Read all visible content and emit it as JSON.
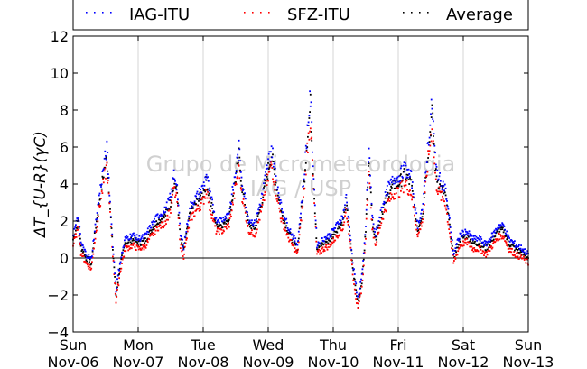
{
  "chart_data": {
    "type": "scatter",
    "ylabel": "ΔT_{U-R}(γC)",
    "ylim": [
      -4,
      12
    ],
    "yticks": [
      -4,
      -2,
      0,
      2,
      4,
      6,
      8,
      10,
      12
    ],
    "xlim": [
      0,
      7
    ],
    "xticks": [
      {
        "x": 0,
        "day": "Sun",
        "date": "Nov-06"
      },
      {
        "x": 1,
        "day": "Mon",
        "date": "Nov-07"
      },
      {
        "x": 2,
        "day": "Tue",
        "date": "Nov-08"
      },
      {
        "x": 3,
        "day": "Wed",
        "date": "Nov-09"
      },
      {
        "x": 4,
        "day": "Thu",
        "date": "Nov-10"
      },
      {
        "x": 5,
        "day": "Fri",
        "date": "Nov-11"
      },
      {
        "x": 6,
        "day": "Sat",
        "date": "Nov-12"
      },
      {
        "x": 7,
        "day": "Sun",
        "date": "Nov-13"
      }
    ],
    "watermark": [
      "Grupo de Micrometeorologia",
      "IAG / USP"
    ],
    "grid": "vertical",
    "legend_position": "top",
    "zero_line": true,
    "series": [
      {
        "name": "IAG-ITU",
        "color": "#0000ff",
        "offset": 0.35
      },
      {
        "name": "SFZ-ITU",
        "color": "#ff0000",
        "offset": -0.45
      },
      {
        "name": "Average",
        "color": "#000000",
        "offset": 0.0
      }
    ],
    "average_profile": [
      [
        0.0,
        1.0
      ],
      [
        0.08,
        2.0
      ],
      [
        0.12,
        0.6
      ],
      [
        0.2,
        0.0
      ],
      [
        0.28,
        -0.3
      ],
      [
        0.33,
        1.2
      ],
      [
        0.4,
        3.0
      ],
      [
        0.48,
        4.8
      ],
      [
        0.52,
        5.5
      ],
      [
        0.6,
        1.0
      ],
      [
        0.66,
        -2.0
      ],
      [
        0.72,
        -0.5
      ],
      [
        0.8,
        0.8
      ],
      [
        0.92,
        1.0
      ],
      [
        1.0,
        0.8
      ],
      [
        1.1,
        0.9
      ],
      [
        1.2,
        1.5
      ],
      [
        1.3,
        2.0
      ],
      [
        1.4,
        2.2
      ],
      [
        1.5,
        3.0
      ],
      [
        1.55,
        4.2
      ],
      [
        1.6,
        3.5
      ],
      [
        1.65,
        1.0
      ],
      [
        1.7,
        0.4
      ],
      [
        1.8,
        2.5
      ],
      [
        1.9,
        3.0
      ],
      [
        2.0,
        3.5
      ],
      [
        2.05,
        4.2
      ],
      [
        2.1,
        3.2
      ],
      [
        2.15,
        2.5
      ],
      [
        2.2,
        1.8
      ],
      [
        2.3,
        1.8
      ],
      [
        2.4,
        2.2
      ],
      [
        2.5,
        4.3
      ],
      [
        2.55,
        5.5
      ],
      [
        2.6,
        3.8
      ],
      [
        2.7,
        1.8
      ],
      [
        2.8,
        1.6
      ],
      [
        2.9,
        3.0
      ],
      [
        3.0,
        4.8
      ],
      [
        3.05,
        5.6
      ],
      [
        3.1,
        4.5
      ],
      [
        3.2,
        2.5
      ],
      [
        3.3,
        1.5
      ],
      [
        3.4,
        0.8
      ],
      [
        3.45,
        0.5
      ],
      [
        3.55,
        4.0
      ],
      [
        3.6,
        6.5
      ],
      [
        3.65,
        8.2
      ],
      [
        3.7,
        4.0
      ],
      [
        3.75,
        0.5
      ],
      [
        3.85,
        0.8
      ],
      [
        3.95,
        1.0
      ],
      [
        4.05,
        1.5
      ],
      [
        4.15,
        2.0
      ],
      [
        4.2,
        3.0
      ],
      [
        4.25,
        1.5
      ],
      [
        4.3,
        -0.5
      ],
      [
        4.38,
        -2.5
      ],
      [
        4.45,
        -1.0
      ],
      [
        4.5,
        1.5
      ],
      [
        4.55,
        5.5
      ],
      [
        4.6,
        2.0
      ],
      [
        4.65,
        1.0
      ],
      [
        4.75,
        2.5
      ],
      [
        4.85,
        3.5
      ],
      [
        4.95,
        4.0
      ],
      [
        5.0,
        4.0
      ],
      [
        5.1,
        4.5
      ],
      [
        5.2,
        4.0
      ],
      [
        5.3,
        1.5
      ],
      [
        5.38,
        2.5
      ],
      [
        5.45,
        5.5
      ],
      [
        5.52,
        7.8
      ],
      [
        5.58,
        4.5
      ],
      [
        5.65,
        3.8
      ],
      [
        5.72,
        3.5
      ],
      [
        5.8,
        1.5
      ],
      [
        5.85,
        0.0
      ],
      [
        5.95,
        1.0
      ],
      [
        6.05,
        1.2
      ],
      [
        6.15,
        0.8
      ],
      [
        6.25,
        0.8
      ],
      [
        6.35,
        0.5
      ],
      [
        6.45,
        1.0
      ],
      [
        6.55,
        1.5
      ],
      [
        6.62,
        1.5
      ],
      [
        6.7,
        0.8
      ],
      [
        6.8,
        0.5
      ],
      [
        6.9,
        0.3
      ],
      [
        7.0,
        0.0
      ]
    ]
  }
}
